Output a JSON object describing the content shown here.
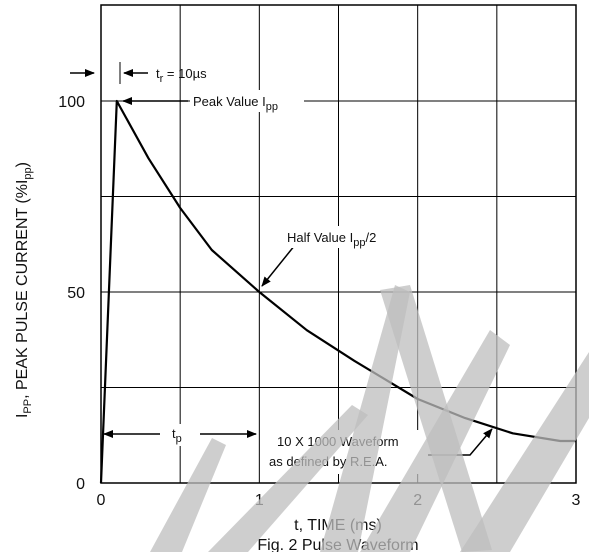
{
  "chart_data": {
    "type": "line",
    "title": "",
    "caption": "Fig. 2  Pulse Waveform",
    "xlabel": "t, TIME (ms)",
    "ylabel": "IPP, PEAK PULSE CURRENT (%IPP)",
    "xlim": [
      0,
      3
    ],
    "ylim": [
      0,
      100
    ],
    "x_ticks": [
      "0",
      "1",
      "2",
      "3"
    ],
    "y_ticks": [
      "0",
      "50",
      "100"
    ],
    "grid": true,
    "series": [
      {
        "name": "",
        "x": [
          0,
          0.1,
          0.3,
          0.5,
          0.7,
          1.0,
          1.3,
          1.6,
          2.0,
          2.3,
          2.6,
          2.9,
          3.0
        ],
        "y": [
          0,
          100,
          85,
          72,
          61,
          50,
          40,
          32,
          22,
          17,
          13,
          11,
          11
        ]
      }
    ],
    "annotations": {
      "rise_time": {
        "main": "t",
        "sub": "r",
        "rest": " = 10µs"
      },
      "peak": {
        "main": "Peak Value I",
        "sub": "pp"
      },
      "half": {
        "main": "Half Value I",
        "sub": "pp",
        "rest": "/2"
      },
      "tp": {
        "main": "t",
        "sub": "p"
      },
      "waveform_line1": "10 X 1000 Waveform",
      "waveform_line2": "as defined by R.E.A."
    }
  }
}
